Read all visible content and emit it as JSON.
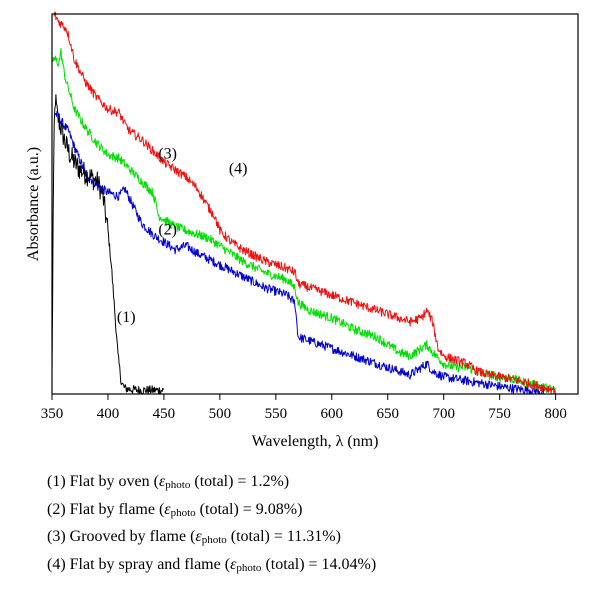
{
  "chart_data": {
    "type": "line",
    "xlabel": "Wavelength, λ (nm)",
    "ylabel": "Absorbance (a.u.)",
    "xlim": [
      350,
      820
    ],
    "ylim": [
      0,
      1
    ],
    "x_ticks": [
      350,
      400,
      450,
      500,
      550,
      600,
      650,
      700,
      750,
      800
    ],
    "grid": false,
    "y_tick_labels": false,
    "series": [
      {
        "name": "(1)",
        "color": "#000000",
        "x": [
          350,
          351,
          352,
          353,
          354,
          355,
          358,
          362,
          366,
          370,
          375,
          380,
          385,
          390,
          395,
          400,
          403,
          406,
          409,
          412,
          415,
          420,
          430,
          440,
          450
        ],
        "y": [
          0.05,
          0.45,
          0.7,
          0.78,
          0.75,
          0.73,
          0.7,
          0.66,
          0.63,
          0.61,
          0.59,
          0.58,
          0.57,
          0.56,
          0.53,
          0.43,
          0.34,
          0.22,
          0.1,
          0.03,
          0.015,
          0.012,
          0.01,
          0.01,
          0.01
        ]
      },
      {
        "name": "(2)",
        "color": "#0000cc",
        "x": [
          352,
          356,
          360,
          365,
          370,
          380,
          390,
          400,
          410,
          415,
          420,
          425,
          430,
          440,
          450,
          460,
          470,
          480,
          500,
          520,
          540,
          560,
          567,
          570,
          580,
          600,
          620,
          640,
          660,
          670,
          680,
          685,
          690,
          700,
          710,
          720,
          730,
          740,
          750,
          760,
          770,
          780,
          790
        ],
        "y": [
          0.74,
          0.73,
          0.71,
          0.69,
          0.65,
          0.58,
          0.55,
          0.53,
          0.52,
          0.54,
          0.51,
          0.48,
          0.45,
          0.42,
          0.4,
          0.38,
          0.39,
          0.37,
          0.34,
          0.31,
          0.28,
          0.26,
          0.24,
          0.15,
          0.14,
          0.12,
          0.1,
          0.08,
          0.06,
          0.05,
          0.07,
          0.08,
          0.06,
          0.045,
          0.04,
          0.035,
          0.03,
          0.025,
          0.02,
          0.015,
          0.012,
          0.01,
          0.005
        ]
      },
      {
        "name": "(3)",
        "color": "#00dd00",
        "x": [
          350,
          353,
          356,
          358,
          360,
          362,
          365,
          370,
          380,
          390,
          400,
          410,
          420,
          430,
          440,
          443,
          445,
          450,
          460,
          470,
          480,
          490,
          500,
          520,
          540,
          560,
          567,
          570,
          580,
          600,
          620,
          640,
          650,
          660,
          670,
          680,
          685,
          690,
          700,
          710,
          720,
          730,
          740,
          760,
          780,
          800
        ],
        "y": [
          0.88,
          0.88,
          0.87,
          0.9,
          0.86,
          0.83,
          0.8,
          0.75,
          0.7,
          0.66,
          0.63,
          0.62,
          0.59,
          0.56,
          0.53,
          0.5,
          0.47,
          0.46,
          0.44,
          0.43,
          0.42,
          0.41,
          0.39,
          0.35,
          0.32,
          0.3,
          0.28,
          0.24,
          0.22,
          0.2,
          0.17,
          0.15,
          0.13,
          0.11,
          0.1,
          0.12,
          0.13,
          0.11,
          0.08,
          0.07,
          0.07,
          0.06,
          0.05,
          0.04,
          0.025,
          0.01
        ]
      },
      {
        "name": "(4)",
        "color": "#ee1111",
        "x": [
          352,
          356,
          360,
          363,
          366,
          370,
          380,
          390,
          400,
          410,
          415,
          420,
          430,
          440,
          450,
          460,
          470,
          480,
          490,
          495,
          500,
          510,
          520,
          540,
          560,
          567,
          570,
          580,
          600,
          620,
          640,
          660,
          670,
          680,
          685,
          690,
          695,
          700,
          710,
          720,
          730,
          740,
          760,
          780,
          800
        ],
        "y": [
          1.0,
          0.98,
          0.97,
          0.96,
          0.93,
          0.88,
          0.82,
          0.78,
          0.75,
          0.74,
          0.71,
          0.69,
          0.67,
          0.64,
          0.61,
          0.59,
          0.57,
          0.54,
          0.49,
          0.47,
          0.43,
          0.4,
          0.38,
          0.35,
          0.33,
          0.32,
          0.29,
          0.28,
          0.26,
          0.24,
          0.22,
          0.2,
          0.19,
          0.2,
          0.22,
          0.19,
          0.12,
          0.1,
          0.09,
          0.08,
          0.06,
          0.05,
          0.04,
          0.025,
          0.01
        ]
      }
    ],
    "annotations": [
      {
        "text": "(1)",
        "x": 408,
        "y": 0.19
      },
      {
        "text": "(2)",
        "x": 445,
        "y": 0.42
      },
      {
        "text": "(3)",
        "x": 445,
        "y": 0.62
      },
      {
        "text": "(4)",
        "x": 508,
        "y": 0.58
      }
    ]
  },
  "legend": [
    {
      "pre": "(1)  Flat by oven (",
      "eps": "ε",
      "sub": "photo",
      "post": " (total) = 1.2%)"
    },
    {
      "pre": "(2)  Flat by flame (",
      "eps": "ε",
      "sub": "photo",
      "post": " (total) = 9.08%)"
    },
    {
      "pre": "(3)  Grooved by flame (",
      "eps": "ε",
      "sub": "photo",
      "post": " (total) = 11.31%)"
    },
    {
      "pre": "(4)  Flat by spray and flame (",
      "eps": "ε",
      "sub": "photo",
      "post": " (total) = 14.04%)"
    }
  ]
}
